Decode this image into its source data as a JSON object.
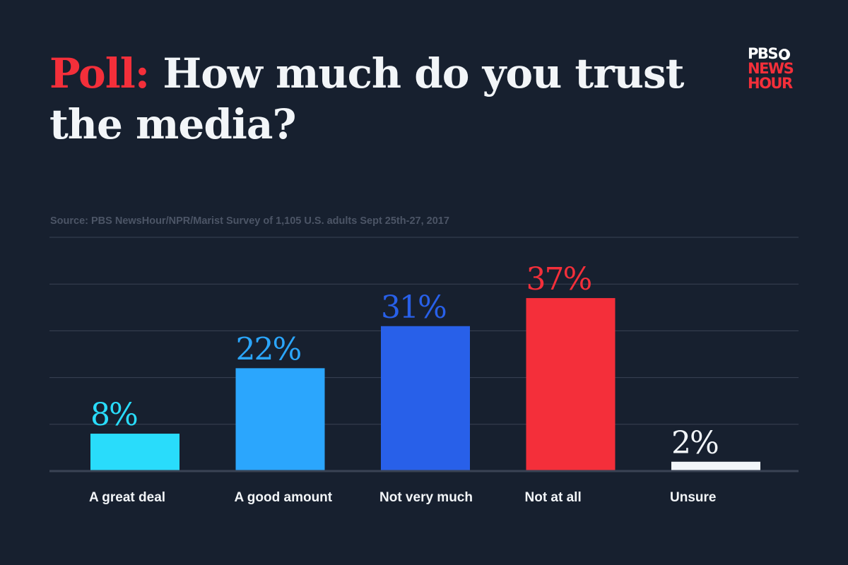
{
  "header": {
    "title_lead": "Poll:",
    "title_rest": "How much do you trust the media?"
  },
  "logo": {
    "line1": "PBS",
    "line2": "NEWS",
    "line3": "HOUR",
    "icon": "pbs-head-icon"
  },
  "source": "Source: PBS NewsHour/NPR/Marist  Survey of 1,105 U.S. adults Sept 25th-27, 2017",
  "colors": {
    "background": "#17202f",
    "accent": "#f42f3a",
    "grid": "#3a4354"
  },
  "chart_data": {
    "type": "bar",
    "title": "Poll: How much do you trust the media?",
    "categories": [
      "A great deal",
      "A good amount",
      "Not very much",
      "Not at all",
      "Unsure"
    ],
    "values": [
      8,
      22,
      31,
      37,
      2
    ],
    "value_labels": [
      "8%",
      "22%",
      "31%",
      "37%",
      "2%"
    ],
    "colors": [
      "#29dcfb",
      "#2ba6fd",
      "#2860e9",
      "#f42f3a",
      "#f2f6fa"
    ],
    "ylim": [
      0,
      50
    ],
    "grid": true,
    "xlabel": "",
    "ylabel": ""
  }
}
